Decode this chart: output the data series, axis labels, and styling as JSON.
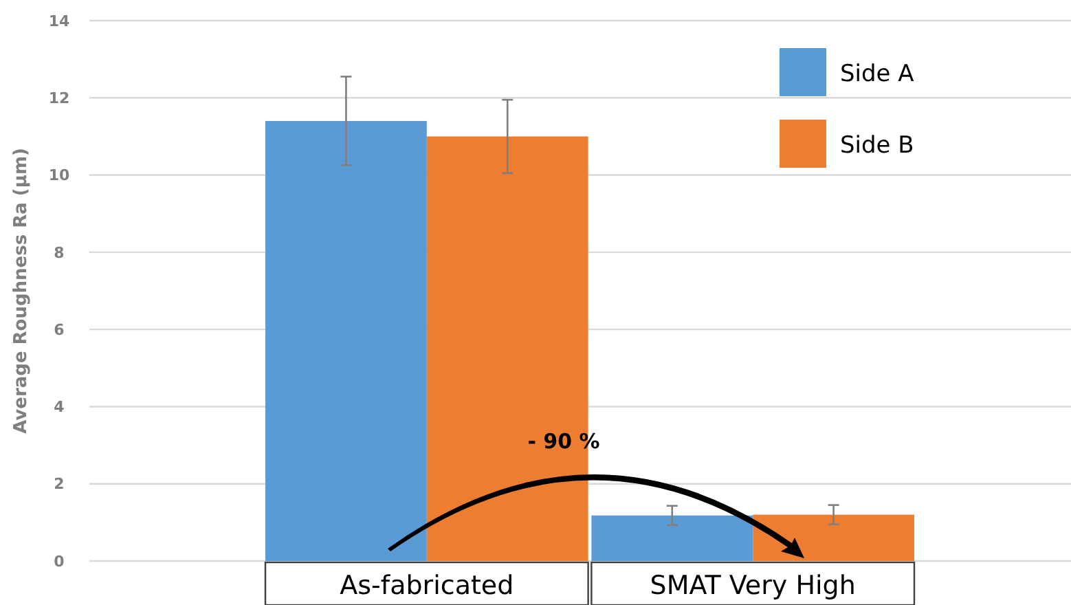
{
  "chart_data": {
    "type": "bar",
    "ylabel": "Average Roughness Ra (µm)",
    "categories": [
      "As-fabricated",
      "SMAT Very High"
    ],
    "series": [
      {
        "name": "Side A",
        "color": "#5b9bd5",
        "values": [
          11.4,
          1.18
        ],
        "errors": [
          1.15,
          0.25
        ]
      },
      {
        "name": "Side B",
        "color": "#ed7d31",
        "values": [
          11.0,
          1.2
        ],
        "errors": [
          0.95,
          0.25
        ]
      }
    ],
    "ylim": [
      0,
      14
    ],
    "yticks": [
      0,
      2,
      4,
      6,
      8,
      10,
      12,
      14
    ],
    "grid": "y",
    "legend": "top right",
    "annotations": [
      "- 90 %"
    ]
  }
}
